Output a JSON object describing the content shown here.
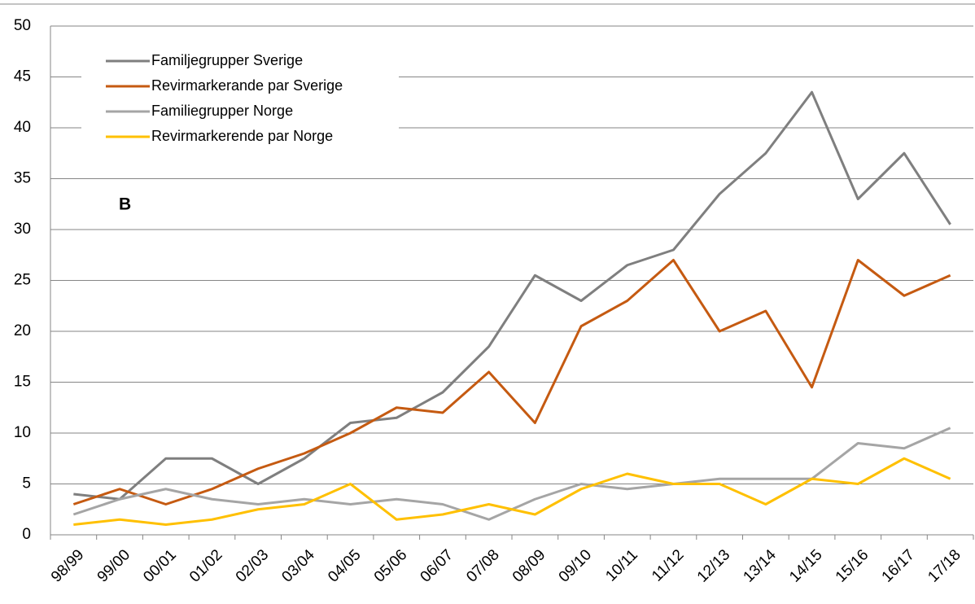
{
  "chart_data": {
    "type": "line",
    "annotation": "B",
    "categories": [
      "98/99",
      "99/00",
      "00/01",
      "01/02",
      "02/03",
      "03/04",
      "04/05",
      "05/06",
      "06/07",
      "07/08",
      "08/09",
      "09/10",
      "10/11",
      "11/12",
      "12/13",
      "13/14",
      "14/15",
      "15/16",
      "16/17",
      "17/18"
    ],
    "series": [
      {
        "name": "Familjegrupper Sverige",
        "color": "#7f7f7f",
        "values": [
          4,
          3.5,
          7.5,
          7.5,
          5,
          7.5,
          11,
          11.5,
          14,
          18.5,
          25.5,
          23,
          26.5,
          28,
          33.5,
          37.5,
          43.5,
          33,
          37.5,
          30.5
        ]
      },
      {
        "name": "Revirmarkerande par Sverige",
        "color": "#c55a11",
        "values": [
          3,
          4.5,
          3,
          4.5,
          6.5,
          8,
          10,
          12.5,
          12,
          16,
          11,
          20.5,
          23,
          27,
          20,
          22,
          14.5,
          27,
          23.5,
          25.5
        ]
      },
      {
        "name": "Familiegrupper Norge",
        "color": "#a5a5a5",
        "values": [
          2,
          3.5,
          4.5,
          3.5,
          3,
          3.5,
          3,
          3.5,
          3,
          1.5,
          3.5,
          5,
          4.5,
          5,
          5.5,
          5.5,
          5.5,
          9,
          8.5,
          10.5
        ]
      },
      {
        "name": "Revirmarkerende par Norge",
        "color": "#ffc000",
        "values": [
          1,
          1.5,
          1,
          1.5,
          2.5,
          3,
          5,
          1.5,
          2,
          3,
          2,
          4.5,
          6,
          5,
          5,
          3,
          5.5,
          5,
          7.5,
          5.5
        ]
      }
    ],
    "ylim": [
      0,
      50
    ],
    "yticks": [
      0,
      5,
      10,
      15,
      20,
      25,
      30,
      35,
      40,
      45,
      50
    ],
    "grid": true,
    "legend": "upper-left"
  }
}
